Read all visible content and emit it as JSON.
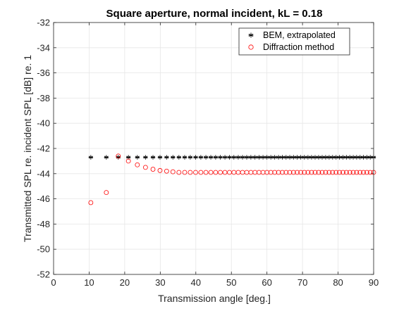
{
  "chart_data": {
    "type": "scatter",
    "title": "Square aperture, normal incident, kL = 0.18",
    "xlabel": "Transmission angle   [deg.]",
    "ylabel": "Transmitted SPL re. incident SPL  [dB] re. 1",
    "xlim": [
      0,
      90
    ],
    "ylim": [
      -52,
      -32
    ],
    "xticks": [
      0,
      10,
      20,
      30,
      40,
      50,
      60,
      70,
      80,
      90
    ],
    "yticks": [
      -52,
      -50,
      -48,
      -46,
      -44,
      -42,
      -40,
      -38,
      -36,
      -34,
      -32
    ],
    "grid": true,
    "legend_position": "top-right",
    "series": [
      {
        "name": "BEM, extrapolated",
        "marker": "asterisk",
        "color": "#000000",
        "y": -42.7
      },
      {
        "name": "Diffraction method",
        "marker": "circle",
        "color": "#ff0000",
        "y": -43.9,
        "edge_deviation_dB": [
          0.05,
          0.1,
          0.15,
          0.25,
          0.4,
          0.6,
          0.9,
          1.3,
          -1.6,
          -2.4
        ]
      }
    ],
    "sampling": "x = arccos(m/N) in degrees, N = 60",
    "samples": 60
  }
}
